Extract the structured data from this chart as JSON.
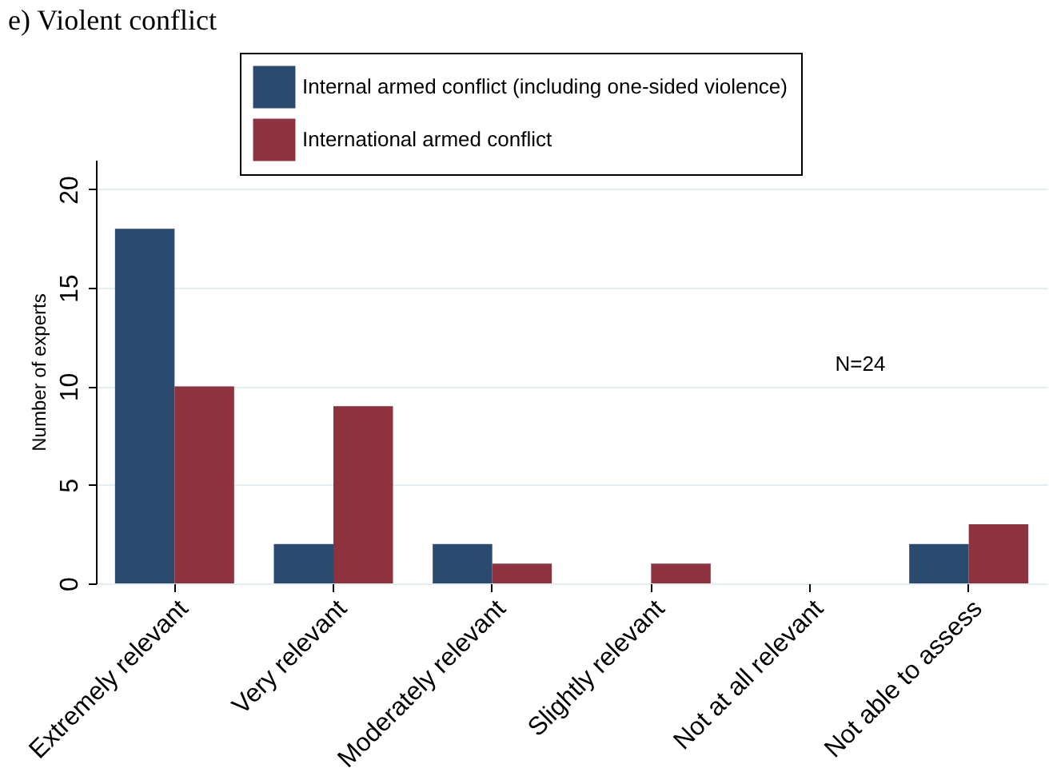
{
  "chart_data": {
    "type": "bar",
    "title": "e) Violent conflict",
    "ylabel": "Number of experts",
    "categories": [
      "Extremely relevant",
      "Very relevant",
      "Moderately relevant",
      "Slightly relevant",
      "Not at all relevant",
      "Not able to assess"
    ],
    "series": [
      {
        "name": "Internal armed conflict (including one-sided violence)",
        "color": "#2b4a6f",
        "values": [
          18,
          2,
          2,
          0,
          0,
          2
        ]
      },
      {
        "name": "International armed conflict",
        "color": "#8e323e",
        "values": [
          10,
          9,
          1,
          1,
          0,
          3
        ]
      }
    ],
    "ylim": [
      0,
      21.5
    ],
    "yticks": [
      0,
      5,
      10,
      15,
      20
    ],
    "grid": "y",
    "legend": "top",
    "annotations": [
      "N=24"
    ]
  }
}
